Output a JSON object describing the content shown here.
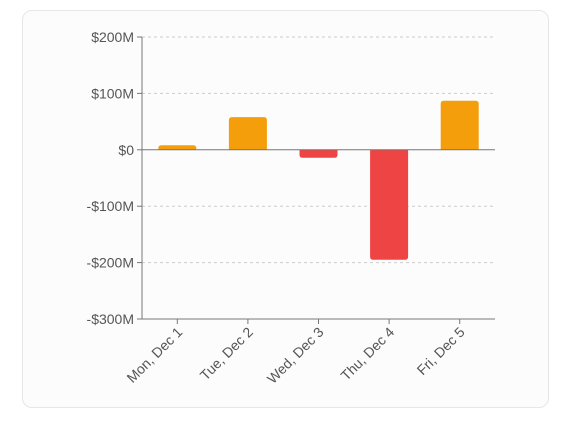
{
  "chart_data": {
    "type": "bar",
    "title": "",
    "xlabel": "",
    "ylabel": "",
    "categories": [
      "Mon, Dec 1",
      "Tue, Dec 2",
      "Wed, Dec 3",
      "Thu, Dec 4",
      "Fri, Dec 5"
    ],
    "values": [
      8,
      58,
      -14,
      -195,
      87
    ],
    "unit": "M USD",
    "ylim": [
      -300,
      200
    ],
    "yticks": [
      200,
      100,
      0,
      -100,
      -200,
      -300
    ],
    "ytick_labels": [
      "$200M",
      "$100M",
      "$0",
      "-$100M",
      "-$200M",
      "-$300M"
    ],
    "grid": "horizontal-dashed",
    "legend": "none",
    "colors": {
      "positive": "#f59e0b",
      "negative": "#ef4444",
      "axis": "#777777",
      "grid": "#cccccc"
    }
  }
}
